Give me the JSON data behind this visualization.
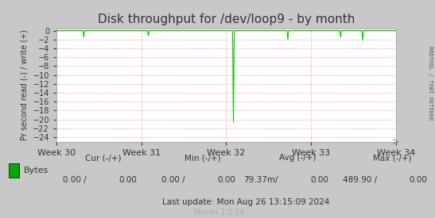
{
  "title": "Disk throughput for /dev/loop9 - by month",
  "ylabel": "Pr second read (-) / write (+)",
  "xlabel_ticks": [
    "Week 30",
    "Week 31",
    "Week 32",
    "Week 33",
    "Week 34"
  ],
  "ylim": [
    -25.0,
    0.5
  ],
  "yticks": [
    0.0,
    -2.0,
    -4.0,
    -6.0,
    -8.0,
    -10.0,
    -12.0,
    -14.0,
    -16.0,
    -18.0,
    -20.0,
    -22.0,
    -24.0
  ],
  "bg_color": "#c8c8c8",
  "plot_bg_color": "#ffffff",
  "grid_color": "#ff9999",
  "line_color": "#00cc00",
  "axis_color": "#333333",
  "right_label": "RRDTOOL / TOBI OETIKER",
  "legend_label": "Bytes",
  "legend_color": "#00aa00",
  "footer_update": "Last update: Mon Aug 26 13:15:09 2024",
  "munin_version": "Munin 2.0.56",
  "spike_x": [
    0.08,
    0.27,
    0.52,
    0.68,
    0.835,
    0.9
  ],
  "spike_y": [
    -1.5,
    -1.2,
    -20.5,
    -2.0,
    -1.5,
    -2.2
  ],
  "num_points": 400
}
